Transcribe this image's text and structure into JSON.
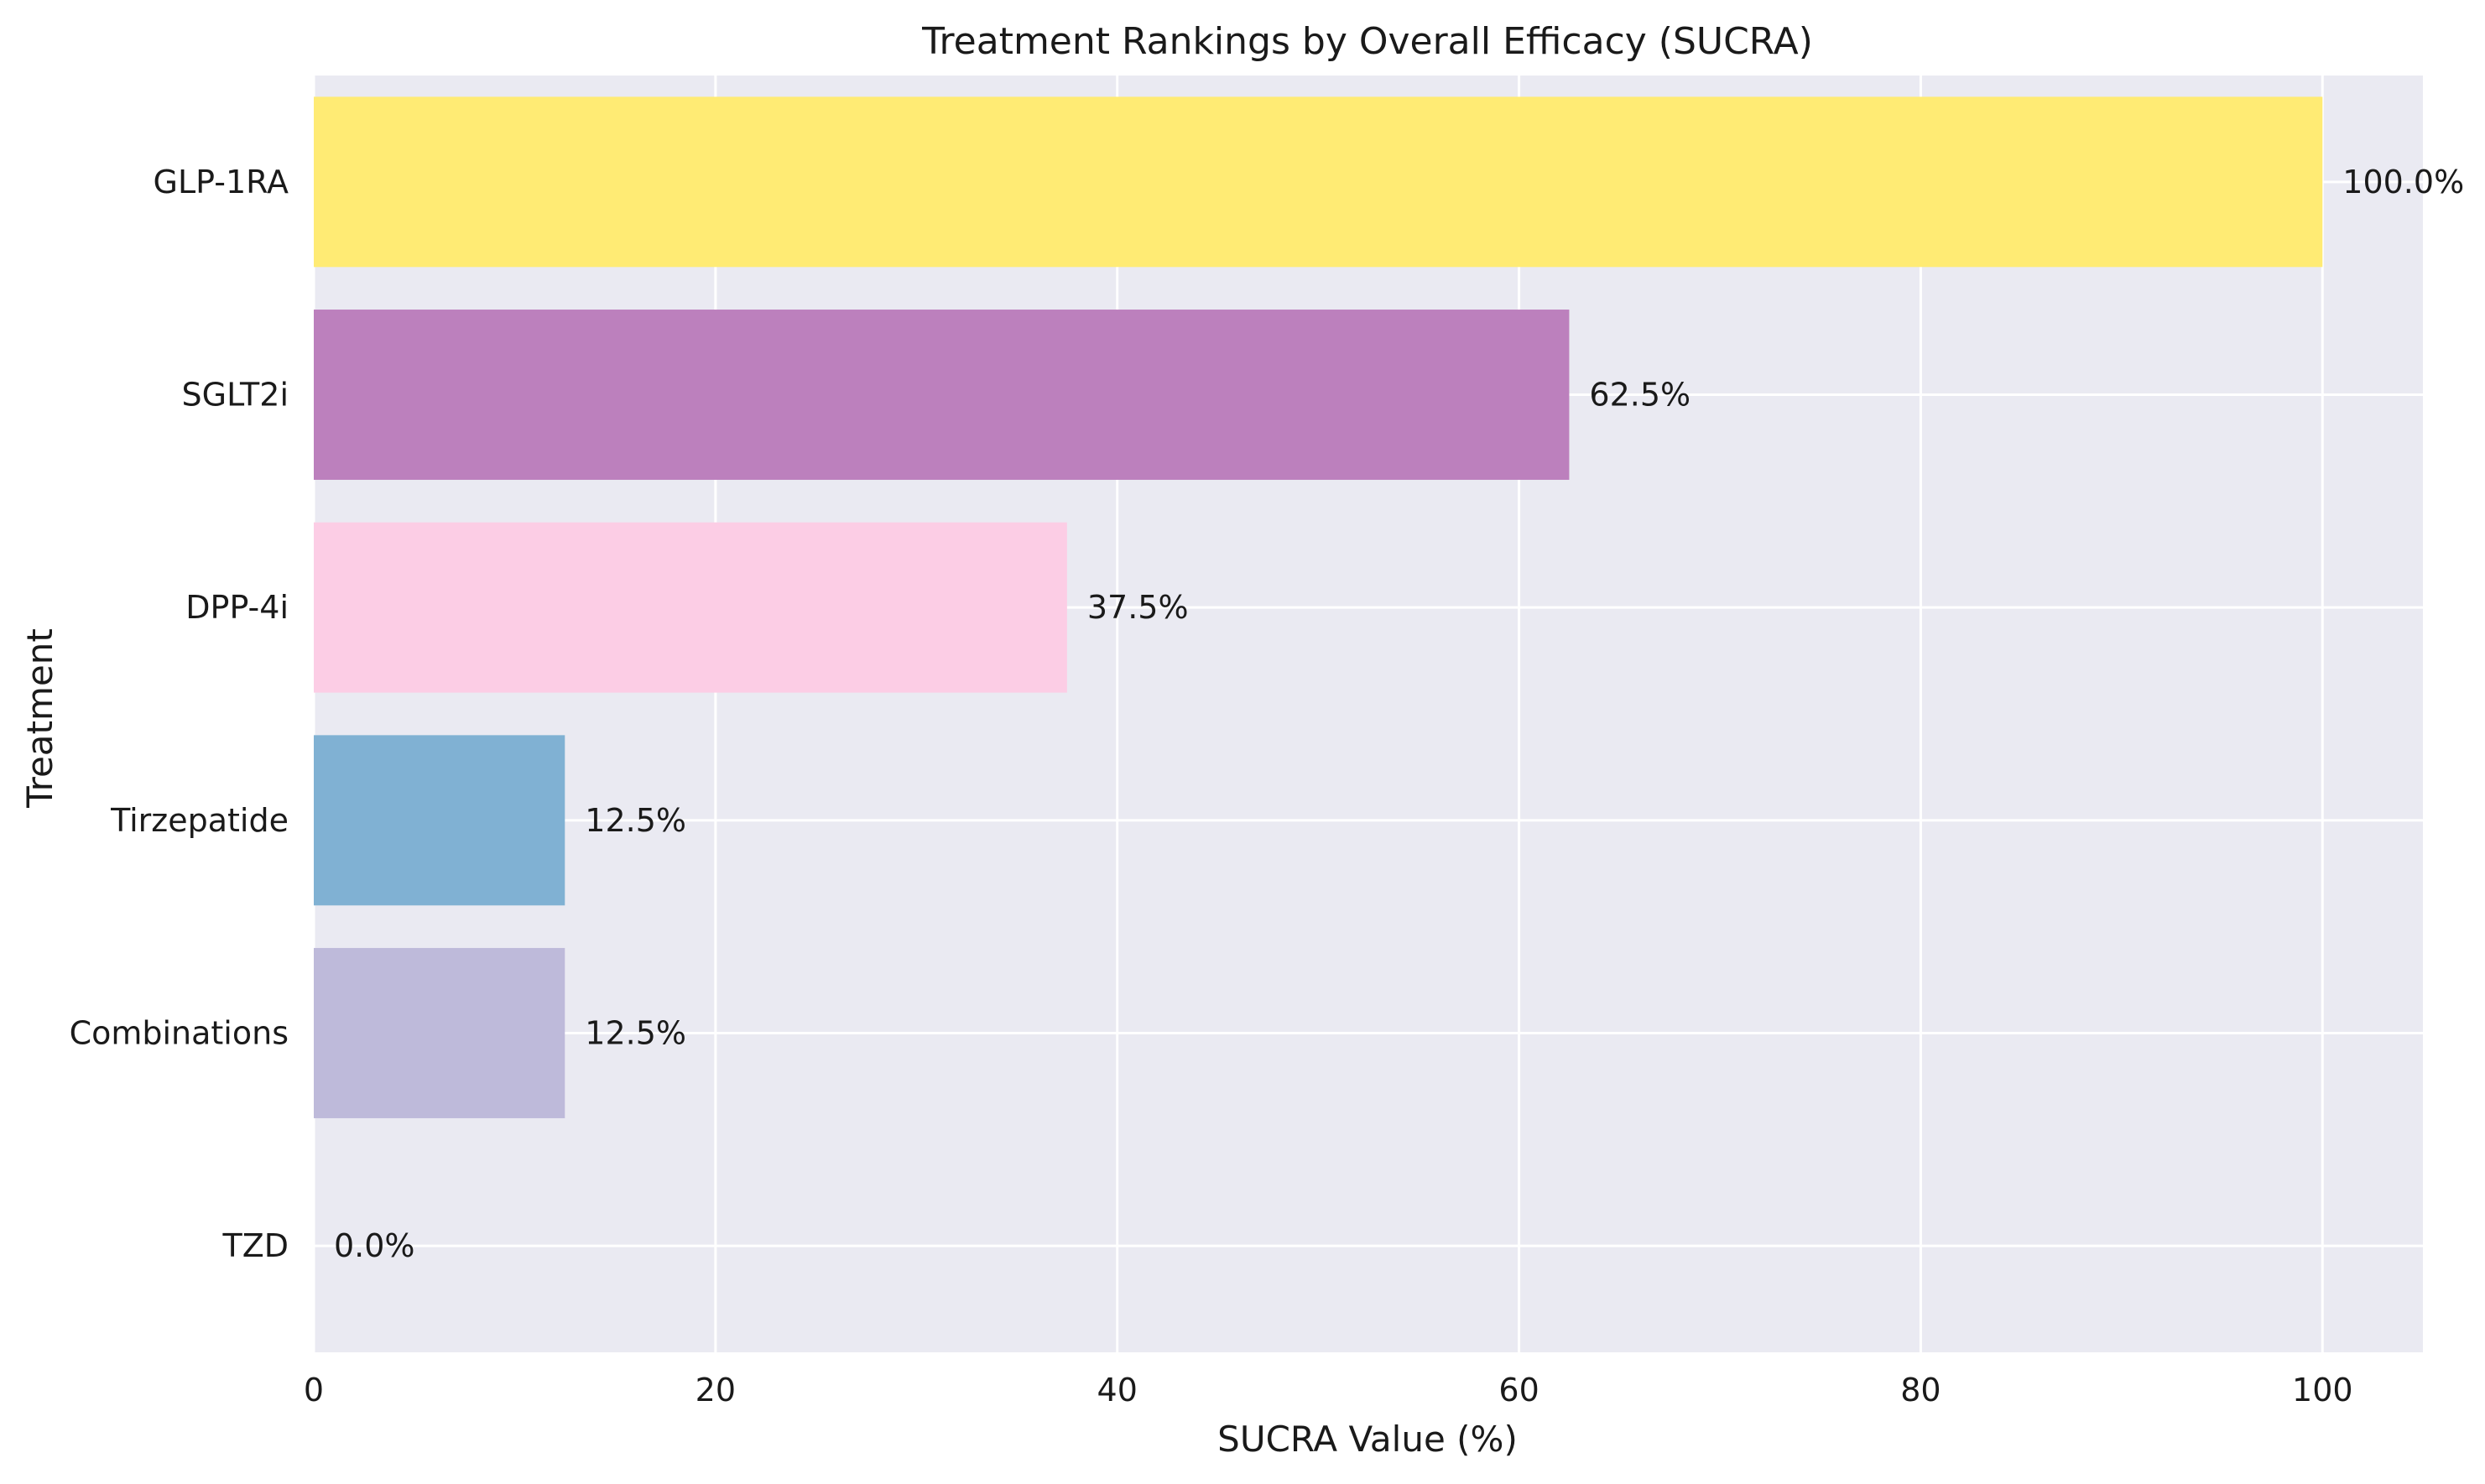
{
  "chart_data": {
    "type": "bar",
    "orientation": "horizontal",
    "title": "Treatment Rankings by Overall Efficacy (SUCRA)",
    "xlabel": "SUCRA Value (%)",
    "ylabel": "Treatment",
    "xlim": [
      0,
      105
    ],
    "x_ticks": [
      0,
      20,
      40,
      60,
      80,
      100
    ],
    "grid": true,
    "categories": [
      "GLP-1RA",
      "SGLT2i",
      "DPP-4i",
      "Tirzepatide",
      "Combinations",
      "TZD"
    ],
    "values": [
      100.0,
      62.5,
      37.5,
      12.5,
      12.5,
      0.0
    ],
    "value_labels": [
      "100.0%",
      "62.5%",
      "37.5%",
      "12.5%",
      "12.5%",
      "0.0%"
    ],
    "colors": [
      "#ffeb74",
      "#bc80bd",
      "#fccde5",
      "#80b1d3",
      "#bebada",
      "#8dd3c7"
    ],
    "plot_background": "#eaeaf2",
    "grid_color": "#ffffff"
  }
}
